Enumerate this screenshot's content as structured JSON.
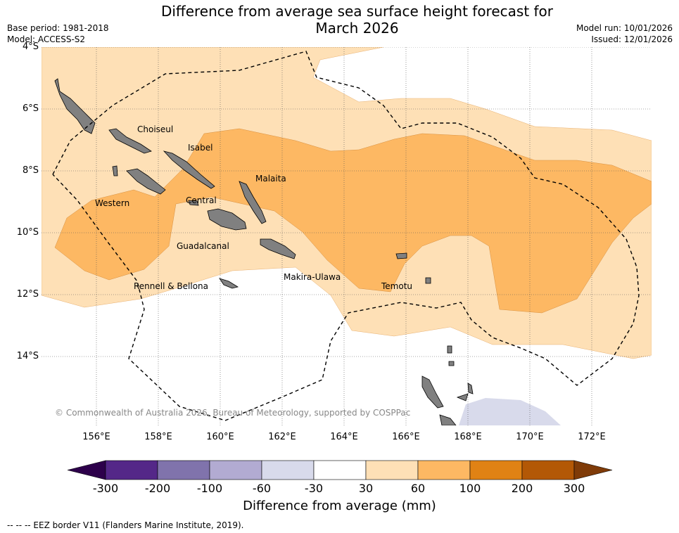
{
  "title_line1": "Difference from average sea surface height forecast for",
  "title_line2": "March 2026",
  "base_period": "Base period: 1981-2018",
  "model": "Model: ACCESS-S2",
  "model_run": "Model run: 10/01/2026",
  "issued": "Issued: 12/01/2026",
  "lat_ticks": [
    "4°S",
    "6°S",
    "8°S",
    "10°S",
    "12°S",
    "14°S"
  ],
  "lon_ticks": [
    "156°E",
    "158°E",
    "160°E",
    "162°E",
    "164°E",
    "166°E",
    "168°E",
    "170°E",
    "172°E"
  ],
  "places": [
    "Choiseul",
    "Isabel",
    "Malaita",
    "Western",
    "Central",
    "Guadalcanal",
    "Makira-Ulawa",
    "Temotu",
    "Rennell & Bellona"
  ],
  "credit": "© Commonwealth of Australia 2026, Bureau of Meteorology, supported by COSPPac",
  "colorbar": {
    "ticks": [
      "-300",
      "-200",
      "-100",
      "-60",
      "-30",
      "30",
      "60",
      "100",
      "200",
      "300"
    ],
    "colors": [
      "#542788",
      "#8073ac",
      "#b2abd2",
      "#d8daeb",
      "#ffffff",
      "#fee0b6",
      "#fdb863",
      "#e08214",
      "#b35806"
    ],
    "under_color": "#2d004b",
    "over_color": "#7f3b08",
    "label": "Difference from average (mm)"
  },
  "footer": "--  --  -- EEZ border V11 (Flanders Marine Institute, 2019)."
}
